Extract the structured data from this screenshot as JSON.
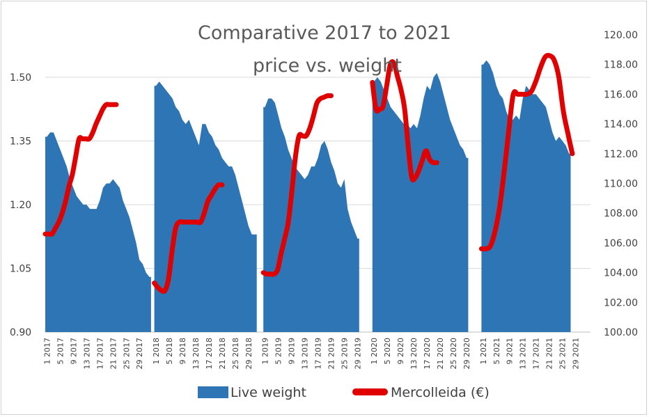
{
  "chart_data": {
    "type": "area+line",
    "title": [
      "Comparative 2017 to 2021",
      "price vs. weight"
    ],
    "y_left": {
      "min": 0.9,
      "max": 1.6,
      "ticks": [
        "0.90",
        "1.05",
        "1.20",
        "1.35",
        "1.50"
      ],
      "tick_values": [
        0.9,
        1.05,
        1.2,
        1.35,
        1.5
      ]
    },
    "y_right": {
      "min": 100,
      "max": 120,
      "ticks": [
        "100.00",
        "102.00",
        "104.00",
        "106.00",
        "108.00",
        "110.00",
        "112.00",
        "114.00",
        "116.00",
        "118.00",
        "120.00"
      ],
      "tick_values": [
        100,
        102,
        104,
        106,
        108,
        110,
        112,
        114,
        116,
        118,
        120
      ]
    },
    "x_tick_labels": [
      "1 2017",
      "5 2017",
      "9 2017",
      "13 2017",
      "17 2017",
      "21 2017",
      "25 2017",
      "29 2017",
      "1 2018",
      "5 2018",
      "9 2018",
      "13 2018",
      "17 2018",
      "21 2018",
      "25 2018",
      "29 2018",
      "1 2019",
      "5 2019",
      "9 2019",
      "13 2019",
      "17 2019",
      "21 2019",
      "25 2019",
      "29 2019",
      "1 2020",
      "5 2020",
      "9 2020",
      "13 2020",
      "17 2020",
      "21 2020",
      "25 2020",
      "29 2020",
      "1 2021",
      "5 2021",
      "9 2021",
      "13 2021",
      "17 2021",
      "21 2021",
      "25 2021",
      "29 2021"
    ],
    "series": [
      {
        "name": "Live weight",
        "type": "area",
        "color": "#2e75b6",
        "axis": "left",
        "years": [
          {
            "year": 2017,
            "values": [
              1.36,
              1.37,
              1.37,
              1.35,
              1.33,
              1.31,
              1.29,
              1.26,
              1.24,
              1.22,
              1.21,
              1.2,
              1.2,
              1.19,
              1.19,
              1.19,
              1.21,
              1.24,
              1.25,
              1.25,
              1.26,
              1.25,
              1.24,
              1.21,
              1.19,
              1.17,
              1.14,
              1.11,
              1.07,
              1.06,
              1.04,
              1.03
            ]
          },
          {
            "year": 2018,
            "values": [
              1.48,
              1.49,
              1.48,
              1.47,
              1.46,
              1.45,
              1.43,
              1.42,
              1.4,
              1.39,
              1.4,
              1.38,
              1.36,
              1.34,
              1.39,
              1.39,
              1.37,
              1.36,
              1.34,
              1.33,
              1.31,
              1.3,
              1.29,
              1.29,
              1.27,
              1.24,
              1.21,
              1.18,
              1.15,
              1.13,
              1.13
            ]
          },
          {
            "year": 2019,
            "values": [
              1.43,
              1.45,
              1.45,
              1.44,
              1.41,
              1.38,
              1.36,
              1.33,
              1.31,
              1.29,
              1.28,
              1.27,
              1.26,
              1.27,
              1.29,
              1.29,
              1.31,
              1.34,
              1.35,
              1.33,
              1.3,
              1.28,
              1.25,
              1.24,
              1.26,
              1.19,
              1.16,
              1.14,
              1.12
            ]
          },
          {
            "year": 2020,
            "values": [
              1.49,
              1.5,
              1.49,
              1.47,
              1.45,
              1.43,
              1.42,
              1.41,
              1.4,
              1.39,
              1.39,
              1.38,
              1.39,
              1.38,
              1.41,
              1.45,
              1.48,
              1.47,
              1.5,
              1.51,
              1.49,
              1.46,
              1.43,
              1.4,
              1.38,
              1.36,
              1.34,
              1.33,
              1.31
            ]
          },
          {
            "year": 2021,
            "values": [
              1.53,
              1.54,
              1.53,
              1.51,
              1.48,
              1.46,
              1.45,
              1.42,
              1.4,
              1.4,
              1.41,
              1.4,
              1.45,
              1.48,
              1.47,
              1.46,
              1.46,
              1.45,
              1.44,
              1.43,
              1.4,
              1.37,
              1.35,
              1.36,
              1.35,
              1.34,
              1.32
            ]
          }
        ]
      },
      {
        "name": "Mercolleida (€)",
        "type": "line",
        "color": "#e00000",
        "axis": "right",
        "years": [
          {
            "year": 2017,
            "values": [
              106.6,
              106.6,
              106.6,
              107.0,
              107.4,
              108.0,
              108.8,
              109.8,
              110.6,
              111.8,
              113.0,
              113.0,
              113.0,
              113.0,
              113.4,
              114.0,
              114.5,
              115.0,
              115.3,
              115.3,
              115.3,
              115.3
            ]
          },
          {
            "year": 2018,
            "values": [
              103.3,
              103.0,
              102.8,
              102.8,
              103.6,
              105.5,
              107.0,
              107.4,
              107.4,
              107.4,
              107.4,
              107.4,
              107.4,
              107.4,
              108.0,
              108.8,
              109.2,
              109.6,
              109.9,
              109.9
            ]
          },
          {
            "year": 2019,
            "values": [
              104.0,
              103.9,
              103.9,
              103.9,
              104.2,
              105.3,
              106.3,
              107.4,
              109.5,
              111.8,
              113.2,
              113.2,
              113.2,
              113.7,
              114.5,
              115.4,
              115.7,
              115.8,
              115.9,
              115.9
            ]
          },
          {
            "year": 2020,
            "values": [
              116.8,
              115.0,
              115.0,
              115.2,
              116.6,
              118.0,
              118.1,
              117.2,
              116.3,
              115.0,
              112.5,
              110.4,
              110.4,
              110.9,
              111.6,
              112.2,
              111.6,
              111.4,
              111.4
            ]
          },
          {
            "year": 2021,
            "values": [
              105.6,
              105.6,
              105.8,
              106.8,
              108.4,
              110.8,
              113.5,
              116.0,
              116.0,
              116.0,
              116.0,
              116.2,
              116.9,
              117.8,
              118.5,
              118.6,
              118.3,
              117.2,
              114.9,
              113.4,
              112.0
            ]
          }
        ]
      }
    ],
    "legend": {
      "position": "bottom",
      "entries": [
        "Live weight",
        "Mercolleida (€)"
      ]
    }
  }
}
